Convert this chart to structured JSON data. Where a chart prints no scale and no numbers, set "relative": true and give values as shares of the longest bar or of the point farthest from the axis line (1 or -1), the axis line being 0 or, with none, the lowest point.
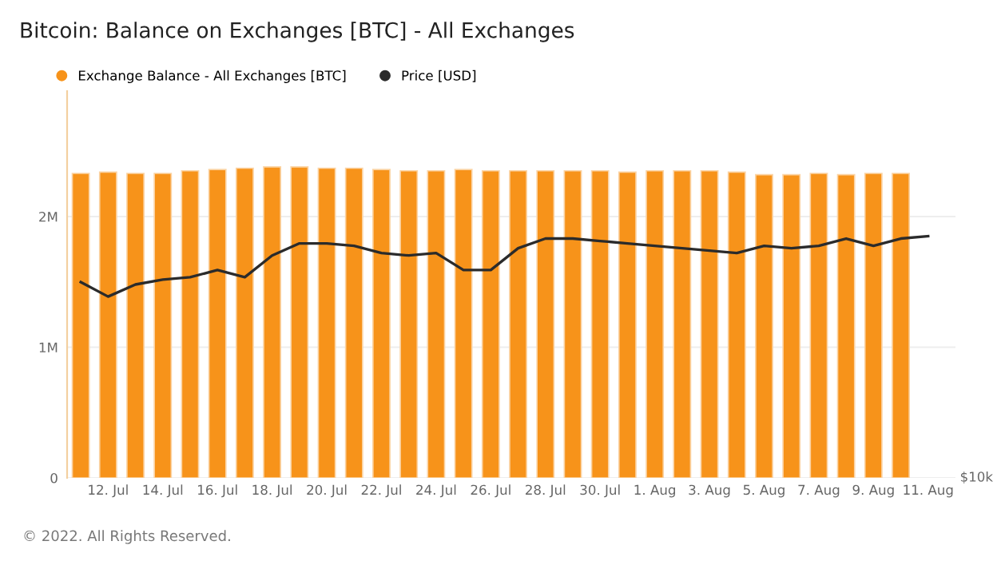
{
  "chart_data": [
    {
      "type": "bar",
      "title": "Bitcoin: Balance on Exchanges [BTC] - All Exchanges",
      "annotations": [
        "© 2022. All Rights Reserved."
      ],
      "series": [
        {
          "name": "Exchange Balance - All Exchanges [BTC]",
          "color": "#f7931a",
          "x": [
            "2022-07-11",
            "2022-07-12",
            "2022-07-13",
            "2022-07-14",
            "2022-07-15",
            "2022-07-16",
            "2022-07-17",
            "2022-07-18",
            "2022-07-19",
            "2022-07-20",
            "2022-07-21",
            "2022-07-22",
            "2022-07-23",
            "2022-07-24",
            "2022-07-25",
            "2022-07-26",
            "2022-07-27",
            "2022-07-28",
            "2022-07-29",
            "2022-07-30",
            "2022-07-31",
            "2022-08-01",
            "2022-08-02",
            "2022-08-03",
            "2022-08-04",
            "2022-08-05",
            "2022-08-06",
            "2022-08-07",
            "2022-08-08",
            "2022-08-09",
            "2022-08-10"
          ],
          "values": [
            2330000,
            2340000,
            2330000,
            2330000,
            2350000,
            2360000,
            2370000,
            2380000,
            2380000,
            2370000,
            2370000,
            2360000,
            2350000,
            2350000,
            2360000,
            2350000,
            2350000,
            2350000,
            2350000,
            2350000,
            2340000,
            2350000,
            2350000,
            2350000,
            2340000,
            2320000,
            2320000,
            2330000,
            2320000,
            2330000,
            2330000
          ]
        }
      ],
      "xlim": [
        "2022-07-10T12:00",
        "2022-08-12T00:00"
      ],
      "xticks": [
        {
          "value": "2022-07-12",
          "label": "12. Jul"
        },
        {
          "value": "2022-07-14",
          "label": "14. Jul"
        },
        {
          "value": "2022-07-16",
          "label": "16. Jul"
        },
        {
          "value": "2022-07-18",
          "label": "18. Jul"
        },
        {
          "value": "2022-07-20",
          "label": "20. Jul"
        },
        {
          "value": "2022-07-22",
          "label": "22. Jul"
        },
        {
          "value": "2022-07-24",
          "label": "24. Jul"
        },
        {
          "value": "2022-07-26",
          "label": "26. Jul"
        },
        {
          "value": "2022-07-28",
          "label": "28. Jul"
        },
        {
          "value": "2022-07-30",
          "label": "30. Jul"
        },
        {
          "value": "2022-08-01",
          "label": "1. Aug"
        },
        {
          "value": "2022-08-03",
          "label": "3. Aug"
        },
        {
          "value": "2022-08-05",
          "label": "5. Aug"
        },
        {
          "value": "2022-08-07",
          "label": "7. Aug"
        },
        {
          "value": "2022-08-09",
          "label": "9. Aug"
        },
        {
          "value": "2022-08-11",
          "label": "11. Aug"
        }
      ],
      "ylim": [
        0,
        2960000
      ],
      "yticks": [
        0,
        {
          "value": 1000000,
          "label": "1M"
        },
        {
          "value": 2000000,
          "label": "2M"
        }
      ],
      "grid": "y",
      "legend": "top left"
    },
    {
      "type": "line",
      "relative": true,
      "annotations": [
        "$10k"
      ],
      "series": [
        {
          "name": "Price [USD]",
          "color": "#2b2b2b",
          "x": [
            "2022-07-11",
            "2022-07-12",
            "2022-07-13",
            "2022-07-14",
            "2022-07-15",
            "2022-07-16",
            "2022-07-17",
            "2022-07-18",
            "2022-07-19",
            "2022-07-20",
            "2022-07-21",
            "2022-07-22",
            "2022-07-23",
            "2022-07-24",
            "2022-07-25",
            "2022-07-26",
            "2022-07-27",
            "2022-07-28",
            "2022-07-29",
            "2022-07-30",
            "2022-07-31",
            "2022-08-01",
            "2022-08-02",
            "2022-08-03",
            "2022-08-04",
            "2022-08-05",
            "2022-08-06",
            "2022-08-07",
            "2022-08-08",
            "2022-08-09",
            "2022-08-10",
            "2022-08-11"
          ],
          "values": [
            0.81,
            0.75,
            0.8,
            0.82,
            0.83,
            0.86,
            0.83,
            0.92,
            0.97,
            0.97,
            0.96,
            0.93,
            0.92,
            0.93,
            0.86,
            0.86,
            0.95,
            0.99,
            0.99,
            0.98,
            0.97,
            0.96,
            0.95,
            0.94,
            0.93,
            0.96,
            0.95,
            0.96,
            0.99,
            0.96,
            0.99,
            1
          ]
        }
      ],
      "xlim": [
        "2022-07-10T12:00",
        "2022-08-12T00:00"
      ],
      "legend": "top left"
    }
  ]
}
